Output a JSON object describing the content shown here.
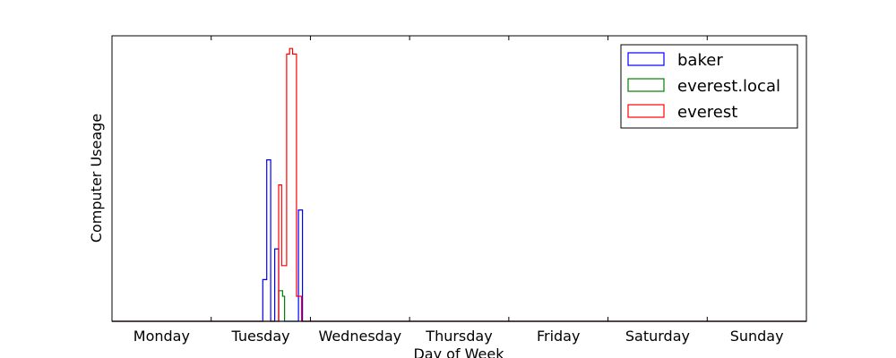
{
  "chart_data": {
    "type": "histogram-step",
    "xlabel": "Day of Week",
    "ylabel": "Computer Useage",
    "xlim": [
      0,
      7
    ],
    "ylim": [
      0,
      1
    ],
    "categories": [
      "Monday",
      "Tuesday",
      "Wednesday",
      "Thursday",
      "Friday",
      "Saturday",
      "Sunday"
    ],
    "legend_position": "top-right",
    "series": [
      {
        "name": "baker",
        "color": "#0000ff",
        "points": [
          [
            0,
            0
          ],
          [
            1.52,
            0
          ],
          [
            1.52,
            0.15
          ],
          [
            1.56,
            0.15
          ],
          [
            1.56,
            0.58
          ],
          [
            1.6,
            0.58
          ],
          [
            1.6,
            0
          ],
          [
            1.64,
            0
          ],
          [
            1.64,
            0.26
          ],
          [
            1.68,
            0.26
          ],
          [
            1.68,
            0
          ],
          [
            1.88,
            0
          ],
          [
            1.88,
            0.4
          ],
          [
            1.92,
            0.4
          ],
          [
            1.92,
            0
          ],
          [
            7,
            0
          ]
        ]
      },
      {
        "name": "everest.local",
        "color": "#008000",
        "points": [
          [
            0,
            0
          ],
          [
            1.68,
            0
          ],
          [
            1.68,
            0.11
          ],
          [
            1.72,
            0.11
          ],
          [
            1.72,
            0.09
          ],
          [
            1.74,
            0.09
          ],
          [
            1.74,
            0
          ],
          [
            7,
            0
          ]
        ]
      },
      {
        "name": "everest",
        "color": "#ff0000",
        "points": [
          [
            0,
            0
          ],
          [
            1.68,
            0
          ],
          [
            1.68,
            0.49
          ],
          [
            1.71,
            0.49
          ],
          [
            1.71,
            0.2
          ],
          [
            1.76,
            0.2
          ],
          [
            1.76,
            0.96
          ],
          [
            1.79,
            0.96
          ],
          [
            1.79,
            0.98
          ],
          [
            1.82,
            0.98
          ],
          [
            1.82,
            0.96
          ],
          [
            1.86,
            0.96
          ],
          [
            1.86,
            0.09
          ],
          [
            1.91,
            0.09
          ],
          [
            1.91,
            0
          ],
          [
            7,
            0
          ]
        ]
      }
    ]
  }
}
